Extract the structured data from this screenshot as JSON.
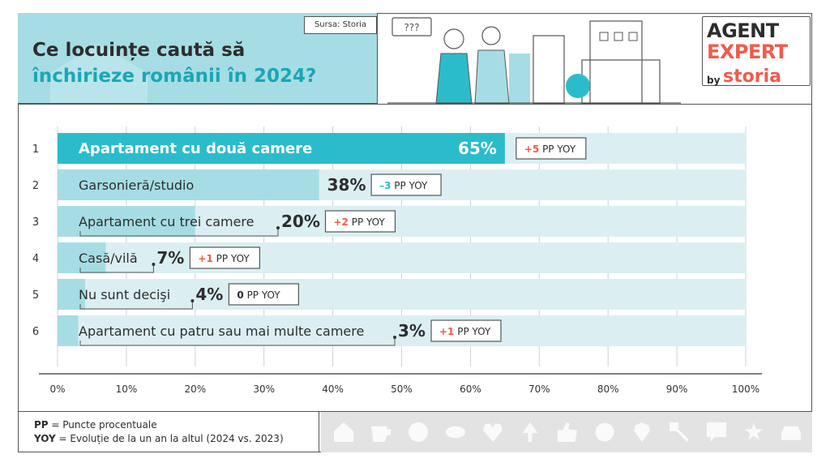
{
  "header": {
    "title_line1": "Ce locuințe caută să",
    "title_line2": "închirieze românii în 2024?",
    "source": "Sursa: Storia",
    "illustration_bubble": "???"
  },
  "logo": {
    "agent": "AGENT",
    "expert": "EXPERT",
    "by": "by",
    "storia": "storia"
  },
  "legend": {
    "pp_abbr": "PP",
    "pp_desc": " = Puncte procentuale",
    "yoy_abbr": "YOY",
    "yoy_desc": " = Evoluție de la un an la altul (2024 vs. 2023)"
  },
  "colors": {
    "bar_fill": "#a6dde4",
    "bar_track": "#dbeff2",
    "bar_highlight": "#2bbccb",
    "positive": "#ef5b4c",
    "negative": "#2bbccb",
    "neutral": "#2d2d2d"
  },
  "icon_strip": [
    "house-icon",
    "cup-icon",
    "smile-icon",
    "eye-icon",
    "heart-icon",
    "tree-icon",
    "thumbs-up-icon",
    "flower-icon",
    "pin-icon",
    "key-icon",
    "chat-icon",
    "star-icon",
    "car-icon"
  ],
  "chart_data": {
    "type": "bar",
    "orientation": "horizontal",
    "xlim": [
      0,
      100
    ],
    "ticks": [
      "0%",
      "10%",
      "20%",
      "30%",
      "40%",
      "50%",
      "60%",
      "70%",
      "80%",
      "90%",
      "100%"
    ],
    "categories": [
      "Apartament cu două camere",
      "Garsonieră/studio",
      "Apartament cu trei camere",
      "Casă/vilă",
      "Nu sunt decişi",
      "Apartament cu patru sau mai multe camere"
    ],
    "ranks": [
      "1",
      "2",
      "3",
      "4",
      "5",
      "6"
    ],
    "values": [
      65,
      38,
      20,
      7,
      4,
      3
    ],
    "value_labels": [
      "65%",
      "38%",
      "20%",
      "7%",
      "4%",
      "3%"
    ],
    "yoy_values": [
      5,
      -3,
      2,
      1,
      0,
      1
    ],
    "yoy_labels": [
      "+5",
      "–3",
      "+2",
      "+1",
      "0",
      "+1"
    ],
    "yoy_suffix": " PP YOY"
  }
}
